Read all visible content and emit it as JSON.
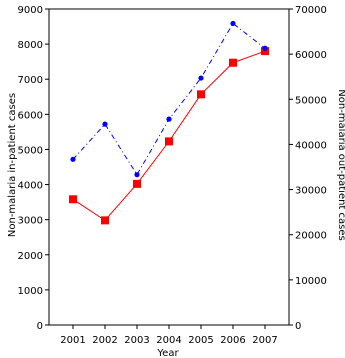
{
  "chart_data": {
    "type": "line",
    "title": "",
    "xlabel": "Year",
    "ylabel_left": "Non-malaria in-patient cases",
    "ylabel_right": "Non-malaria out-patient cases",
    "categories": [
      "2001",
      "2002",
      "2003",
      "2004",
      "2005",
      "2006",
      "2007"
    ],
    "ylim_left": [
      0,
      9000
    ],
    "ylim_right": [
      0,
      70000
    ],
    "yticks_left": [
      0,
      1000,
      2000,
      3000,
      4000,
      5000,
      6000,
      7000,
      8000,
      9000
    ],
    "yticks_right": [
      0,
      10000,
      20000,
      30000,
      40000,
      50000,
      60000,
      70000
    ],
    "grid": false,
    "legend": "none",
    "series": [
      {
        "axis": "left",
        "color": "#ff0000",
        "line_style": "solid",
        "marker": "square",
        "values": [
          3580,
          2980,
          4020,
          5230,
          6570,
          7470,
          7800
        ]
      },
      {
        "axis": "right",
        "color": "#0000ff",
        "line_style": "dash-dot",
        "marker": "circle",
        "values": [
          36700,
          44500,
          33300,
          45600,
          54700,
          66800,
          61300
        ]
      }
    ]
  }
}
